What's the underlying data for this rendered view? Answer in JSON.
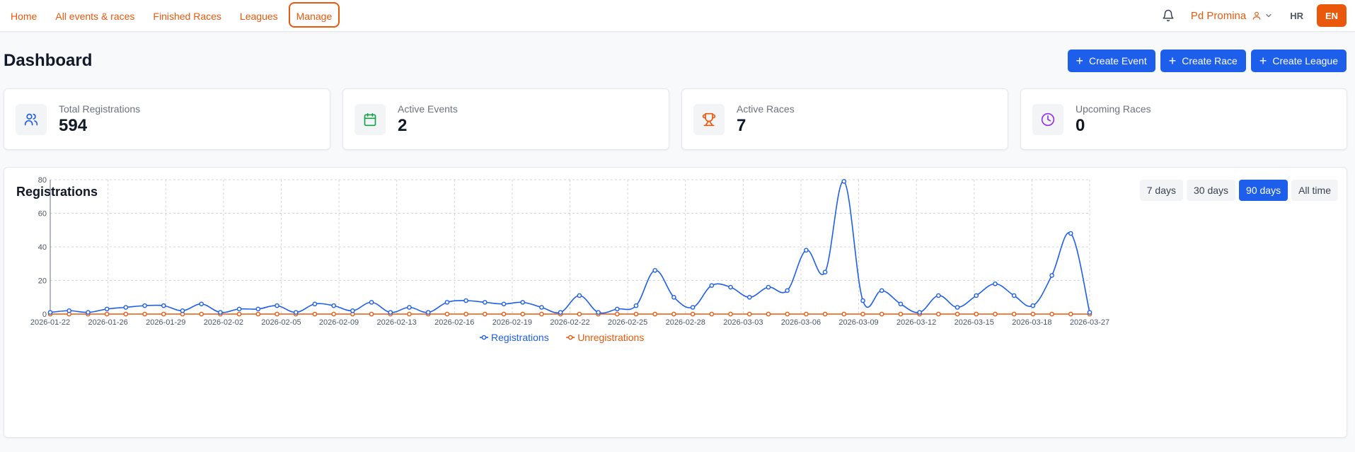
{
  "nav": {
    "links": [
      {
        "label": "Home",
        "active": false
      },
      {
        "label": "All events & races",
        "active": false
      },
      {
        "label": "Finished Races",
        "active": false
      },
      {
        "label": "Leagues",
        "active": false
      },
      {
        "label": "Manage",
        "active": true
      }
    ],
    "user_name": "Pd Promina",
    "lang_hr": "HR",
    "lang_en": "EN",
    "icons": {
      "bell": "bell-icon",
      "user": "user-icon",
      "chevron": "chevron-down-icon"
    }
  },
  "page": {
    "title": "Dashboard"
  },
  "actions": [
    {
      "label": "Create Event",
      "icon": "plus-icon"
    },
    {
      "label": "Create Race",
      "icon": "plus-icon"
    },
    {
      "label": "Create League",
      "icon": "plus-icon"
    }
  ],
  "stats": [
    {
      "label": "Total Registrations",
      "value": "594",
      "icon": "users-icon",
      "color": "#1d5eea"
    },
    {
      "label": "Active Events",
      "value": "2",
      "icon": "calendar-icon",
      "color": "#16a34a"
    },
    {
      "label": "Active Races",
      "value": "7",
      "icon": "trophy-icon",
      "color": "#ea580c"
    },
    {
      "label": "Upcoming Races",
      "value": "0",
      "icon": "clock-icon",
      "color": "#9333ea"
    }
  ],
  "chart": {
    "title": "Registrations",
    "ranges": [
      {
        "label": "7 days",
        "active": false
      },
      {
        "label": "30 days",
        "active": false
      },
      {
        "label": "90 days",
        "active": true
      },
      {
        "label": "All time",
        "active": false
      }
    ]
  },
  "colors": {
    "accent": "#ea580c",
    "primary": "#1d5eea",
    "registrations": "#1d5eea",
    "unregistrations": "#ea580c"
  },
  "chart_data": {
    "type": "line",
    "title": "Registrations",
    "xlabel": "",
    "ylabel": "",
    "ylim": [
      0,
      80
    ],
    "yticks": [
      0,
      20,
      40,
      60,
      80
    ],
    "xtick_labels": [
      "2026-01-22",
      "2026-01-26",
      "2026-01-29",
      "2026-02-02",
      "2026-02-05",
      "2026-02-09",
      "2026-02-13",
      "2026-02-16",
      "2026-02-19",
      "2026-02-22",
      "2026-02-25",
      "2026-02-28",
      "2026-03-03",
      "2026-03-06",
      "2026-03-09",
      "2026-03-12",
      "2026-03-15",
      "2026-03-18",
      "2026-03-27"
    ],
    "legend_position": "bottom",
    "grid": true,
    "series": [
      {
        "name": "Registrations",
        "color": "#1d5eea",
        "values": [
          1,
          2,
          1,
          3,
          4,
          5,
          5,
          2,
          6,
          1,
          3,
          3,
          5,
          1,
          6,
          5,
          2,
          7,
          1,
          4,
          1,
          7,
          8,
          7,
          6,
          7,
          4,
          1,
          11,
          1,
          3,
          5,
          26,
          10,
          4,
          17,
          16,
          10,
          16,
          14,
          38,
          25,
          79,
          8,
          14,
          6,
          1,
          11,
          4,
          11,
          18,
          11,
          5,
          23,
          48,
          1
        ]
      },
      {
        "name": "Unregistrations",
        "color": "#ea580c",
        "values": [
          0,
          0,
          0,
          0,
          0,
          0,
          0,
          0,
          0,
          0,
          0,
          0,
          0,
          0,
          0,
          0,
          0,
          0,
          0,
          0,
          0,
          0,
          0,
          0,
          0,
          0,
          0,
          0,
          0,
          0,
          0,
          0,
          0,
          0,
          0,
          0,
          0,
          0,
          0,
          0,
          0,
          0,
          0,
          0,
          0,
          0,
          0,
          0,
          0,
          0,
          0,
          0,
          0,
          0,
          0,
          0
        ]
      }
    ]
  }
}
